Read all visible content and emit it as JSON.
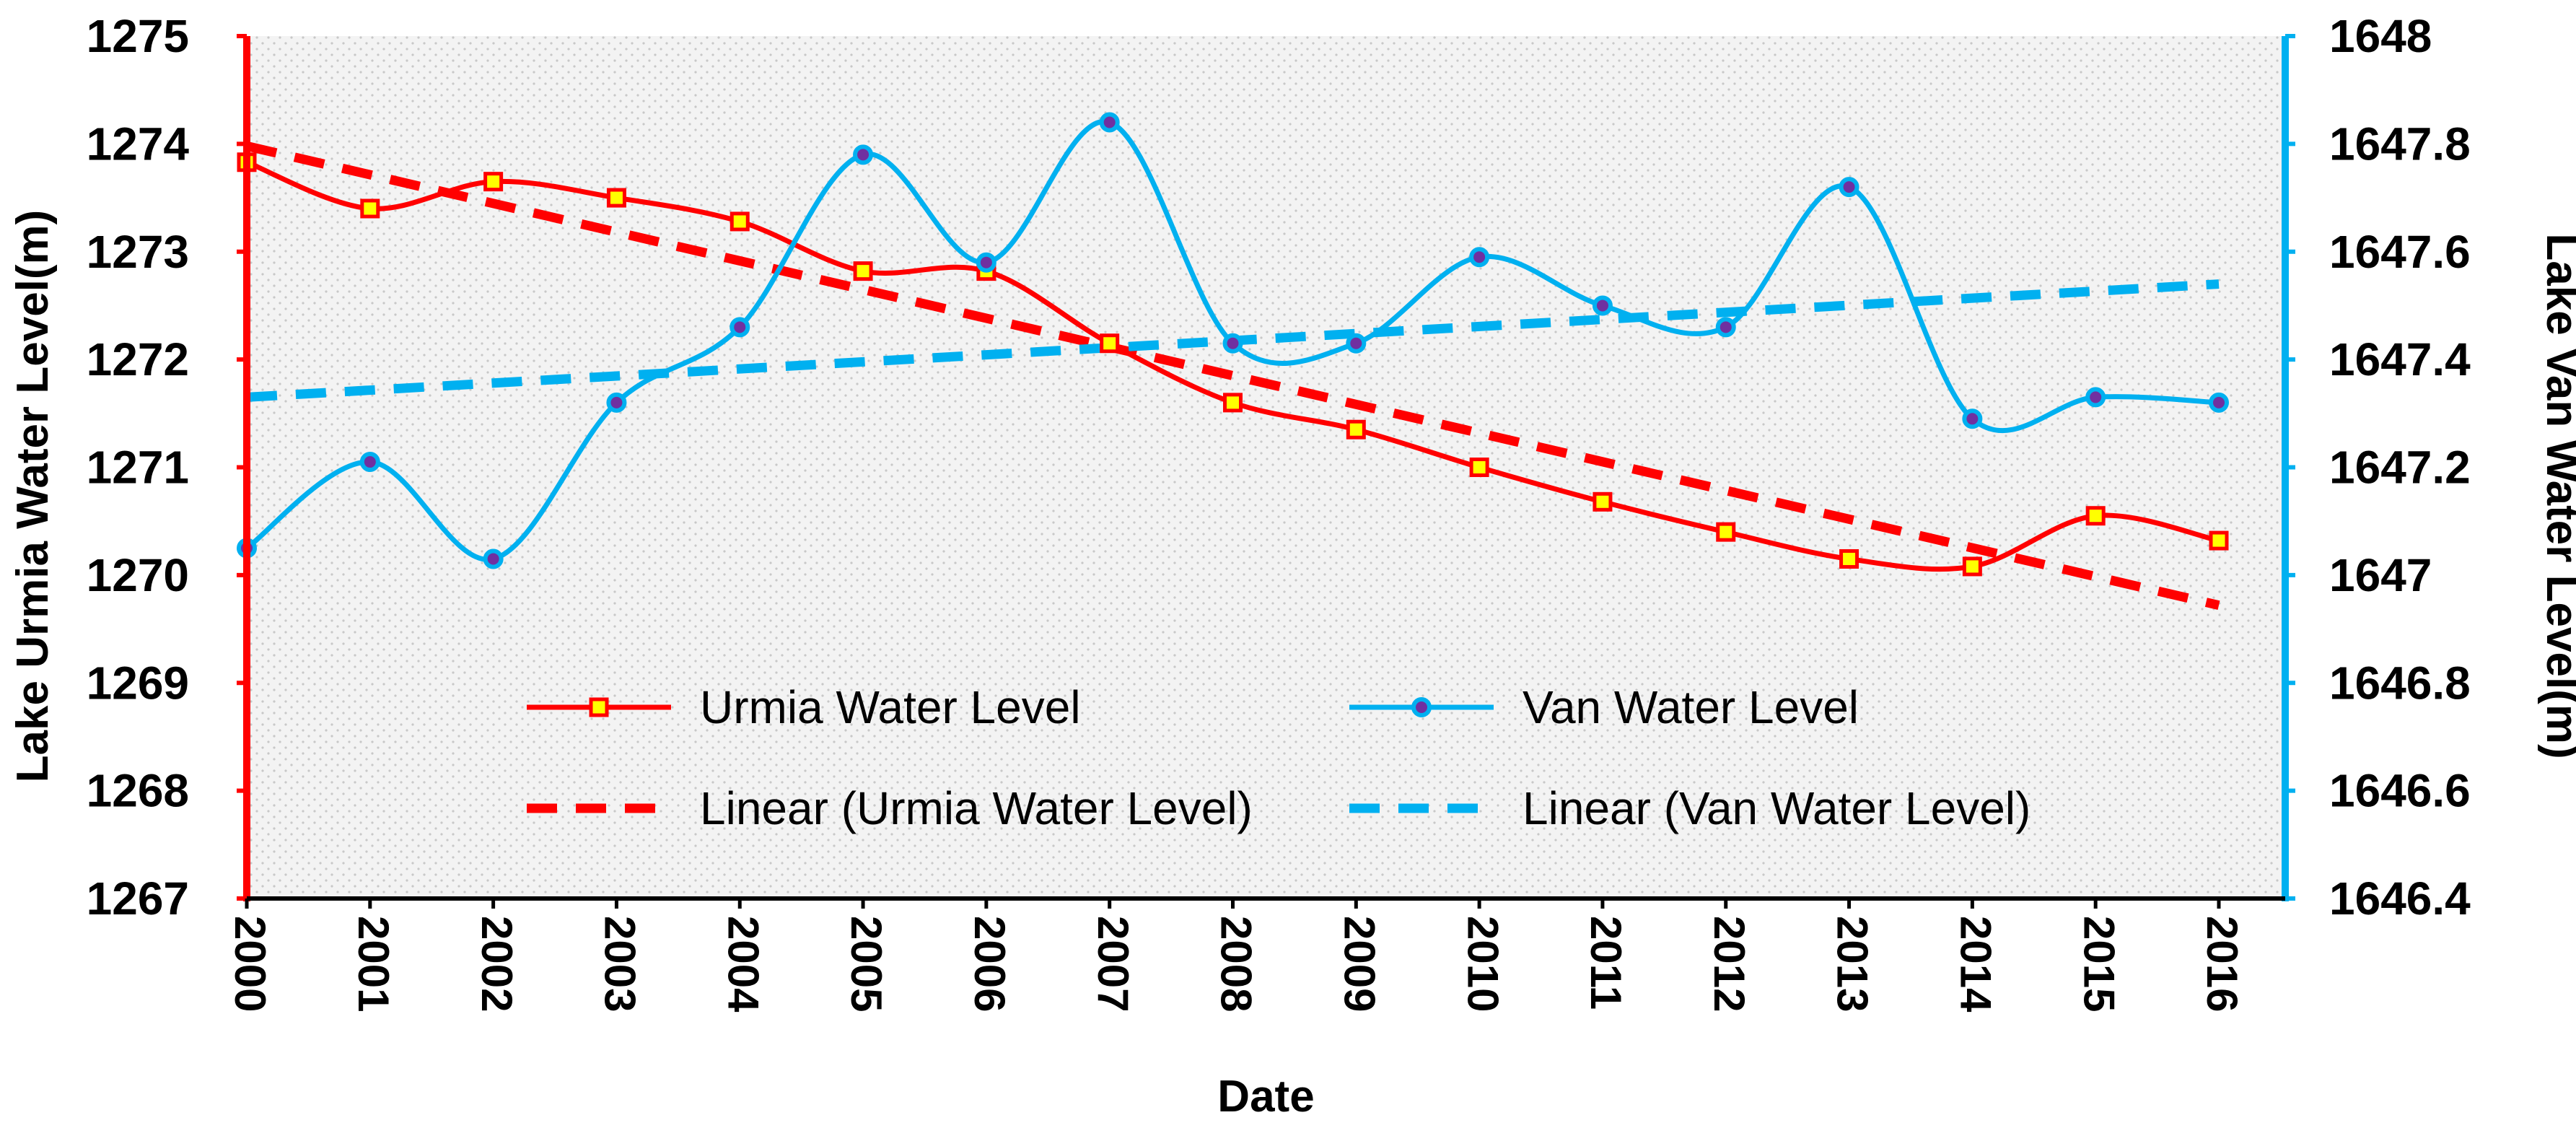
{
  "chart_data": {
    "type": "line",
    "xlabel": "Date",
    "y_left_label": "Lake Urmia Water Level(m)",
    "y_right_label": "Lake Van Water Level(m)",
    "y_left_range": [
      1267,
      1275
    ],
    "y_left_ticks": [
      "1267",
      "1268",
      "1269",
      "1270",
      "1271",
      "1272",
      "1273",
      "1274",
      "1275"
    ],
    "y_right_range": [
      1646.4,
      1648
    ],
    "y_right_ticks": [
      "1646.4",
      "1646.6",
      "1646.8",
      "1647",
      "1647.2",
      "1647.4",
      "1647.6",
      "1647.8",
      "1648"
    ],
    "categories": [
      "2000",
      "2001",
      "2002",
      "2003",
      "2004",
      "2005",
      "2006",
      "2007",
      "2008",
      "2009",
      "2010",
      "2011",
      "2012",
      "2013",
      "2014",
      "2015",
      "2016"
    ],
    "series": [
      {
        "name": "Urmia Water Level",
        "axis": "left",
        "color": "#ff0000",
        "marker": "square",
        "values": [
          1273.83,
          1273.4,
          1273.65,
          1273.5,
          1273.28,
          1272.82,
          1272.82,
          1272.15,
          1271.6,
          1271.35,
          1271.0,
          1270.68,
          1270.4,
          1270.15,
          1270.08,
          1270.55,
          1270.32
        ]
      },
      {
        "name": "Van Water Level",
        "axis": "right",
        "color": "#00b0f0",
        "marker": "circle",
        "values": [
          1647.05,
          1647.21,
          1647.03,
          1647.32,
          1647.46,
          1647.78,
          1647.58,
          1647.84,
          1647.43,
          1647.43,
          1647.59,
          1647.5,
          1647.46,
          1647.72,
          1647.29,
          1647.33,
          1647.32
        ]
      }
    ],
    "trendlines": [
      {
        "name": "Linear (Urmia Water Level)",
        "axis": "left",
        "color": "#ff0000",
        "start": 1273.98,
        "end": 1269.72
      },
      {
        "name": "Linear (Van Water Level)",
        "axis": "right",
        "color": "#00b0f0",
        "start": 1647.33,
        "end": 1647.54
      }
    ],
    "legend": {
      "position": "center-bottom",
      "items": [
        "Urmia Water Level",
        "Van Water Level",
        "Linear (Urmia Water Level)",
        "Linear (Van Water Level)"
      ]
    }
  }
}
